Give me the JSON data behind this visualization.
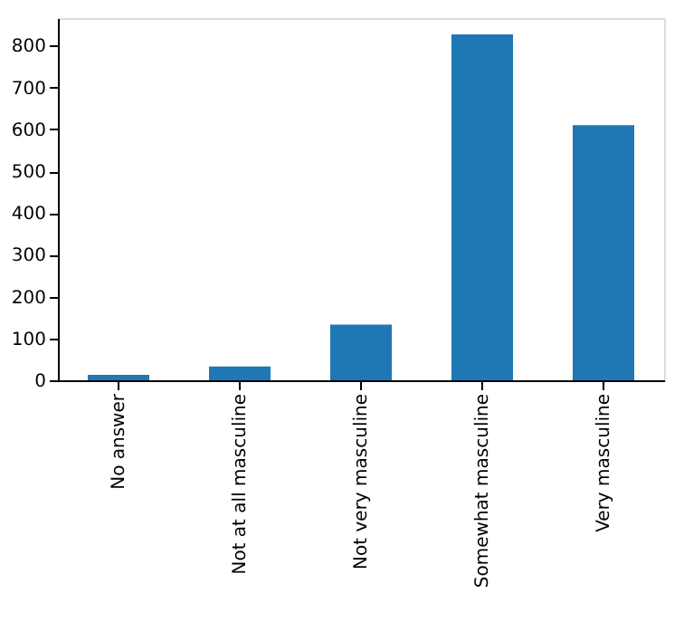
{
  "chart_data": {
    "type": "bar",
    "categories": [
      "No answer",
      "Not at all masculine",
      "Not very masculine",
      "Somewhat masculine",
      "Very masculine"
    ],
    "values": [
      13,
      33,
      133,
      827,
      610
    ],
    "color": "#1f77b4",
    "ylim": [
      0,
      866
    ],
    "yticks": [
      0,
      100,
      200,
      300,
      400,
      500,
      600,
      700,
      800
    ],
    "grid": false,
    "legend": false
  }
}
